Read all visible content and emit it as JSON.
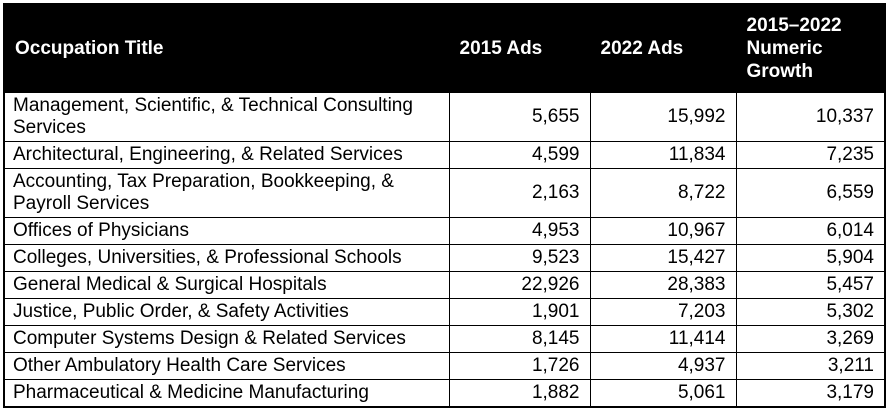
{
  "colors": {
    "header_bg": "#000000",
    "header_text": "#ffffff",
    "border": "#000000",
    "row_bg": "#ffffff",
    "body_text": "#000000"
  },
  "table": {
    "columns": [
      {
        "label": "Occupation Title"
      },
      {
        "label": "2015 Ads"
      },
      {
        "label": "2022 Ads"
      },
      {
        "label": "2015–2022 Numeric Growth"
      }
    ],
    "rows": [
      {
        "occupation": "Management, Scientific, & Technical Consulting Services",
        "ads_2015": "5,655",
        "ads_2022": "15,992",
        "growth": "10,337"
      },
      {
        "occupation": "Architectural, Engineering, & Related Services",
        "ads_2015": "4,599",
        "ads_2022": "11,834",
        "growth": "7,235"
      },
      {
        "occupation": "Accounting, Tax Preparation, Bookkeeping, & Payroll Services",
        "ads_2015": "2,163",
        "ads_2022": "8,722",
        "growth": "6,559"
      },
      {
        "occupation": "Offices of Physicians",
        "ads_2015": "4,953",
        "ads_2022": "10,967",
        "growth": "6,014"
      },
      {
        "occupation": "Colleges, Universities, & Professional Schools",
        "ads_2015": "9,523",
        "ads_2022": "15,427",
        "growth": "5,904"
      },
      {
        "occupation": "General Medical & Surgical Hospitals",
        "ads_2015": "22,926",
        "ads_2022": "28,383",
        "growth": "5,457"
      },
      {
        "occupation": "Justice, Public Order, & Safety Activities",
        "ads_2015": "1,901",
        "ads_2022": "7,203",
        "growth": "5,302"
      },
      {
        "occupation": "Computer Systems Design & Related Services",
        "ads_2015": "8,145",
        "ads_2022": "11,414",
        "growth": "3,269"
      },
      {
        "occupation": "Other Ambulatory Health Care Services",
        "ads_2015": "1,726",
        "ads_2022": "4,937",
        "growth": "3,211"
      },
      {
        "occupation": "Pharmaceutical & Medicine Manufacturing",
        "ads_2015": "1,882",
        "ads_2022": "5,061",
        "growth": "3,179"
      }
    ]
  },
  "chart_data": {
    "type": "table",
    "title": "",
    "columns": [
      "Occupation Title",
      "2015 Ads",
      "2022 Ads",
      "2015–2022 Numeric Growth"
    ],
    "rows": [
      [
        "Management, Scientific, & Technical Consulting Services",
        5655,
        15992,
        10337
      ],
      [
        "Architectural, Engineering, & Related Services",
        4599,
        11834,
        7235
      ],
      [
        "Accounting, Tax Preparation, Bookkeeping, & Payroll Services",
        2163,
        8722,
        6559
      ],
      [
        "Offices of Physicians",
        4953,
        10967,
        6014
      ],
      [
        "Colleges, Universities, & Professional Schools",
        9523,
        15427,
        5904
      ],
      [
        "General Medical & Surgical Hospitals",
        22926,
        28383,
        5457
      ],
      [
        "Justice, Public Order, & Safety Activities",
        1901,
        7203,
        5302
      ],
      [
        "Computer Systems Design & Related Services",
        8145,
        11414,
        3269
      ],
      [
        "Other Ambulatory Health Care Services",
        1726,
        4937,
        3211
      ],
      [
        "Pharmaceutical & Medicine Manufacturing",
        1882,
        5061,
        3179
      ]
    ]
  }
}
